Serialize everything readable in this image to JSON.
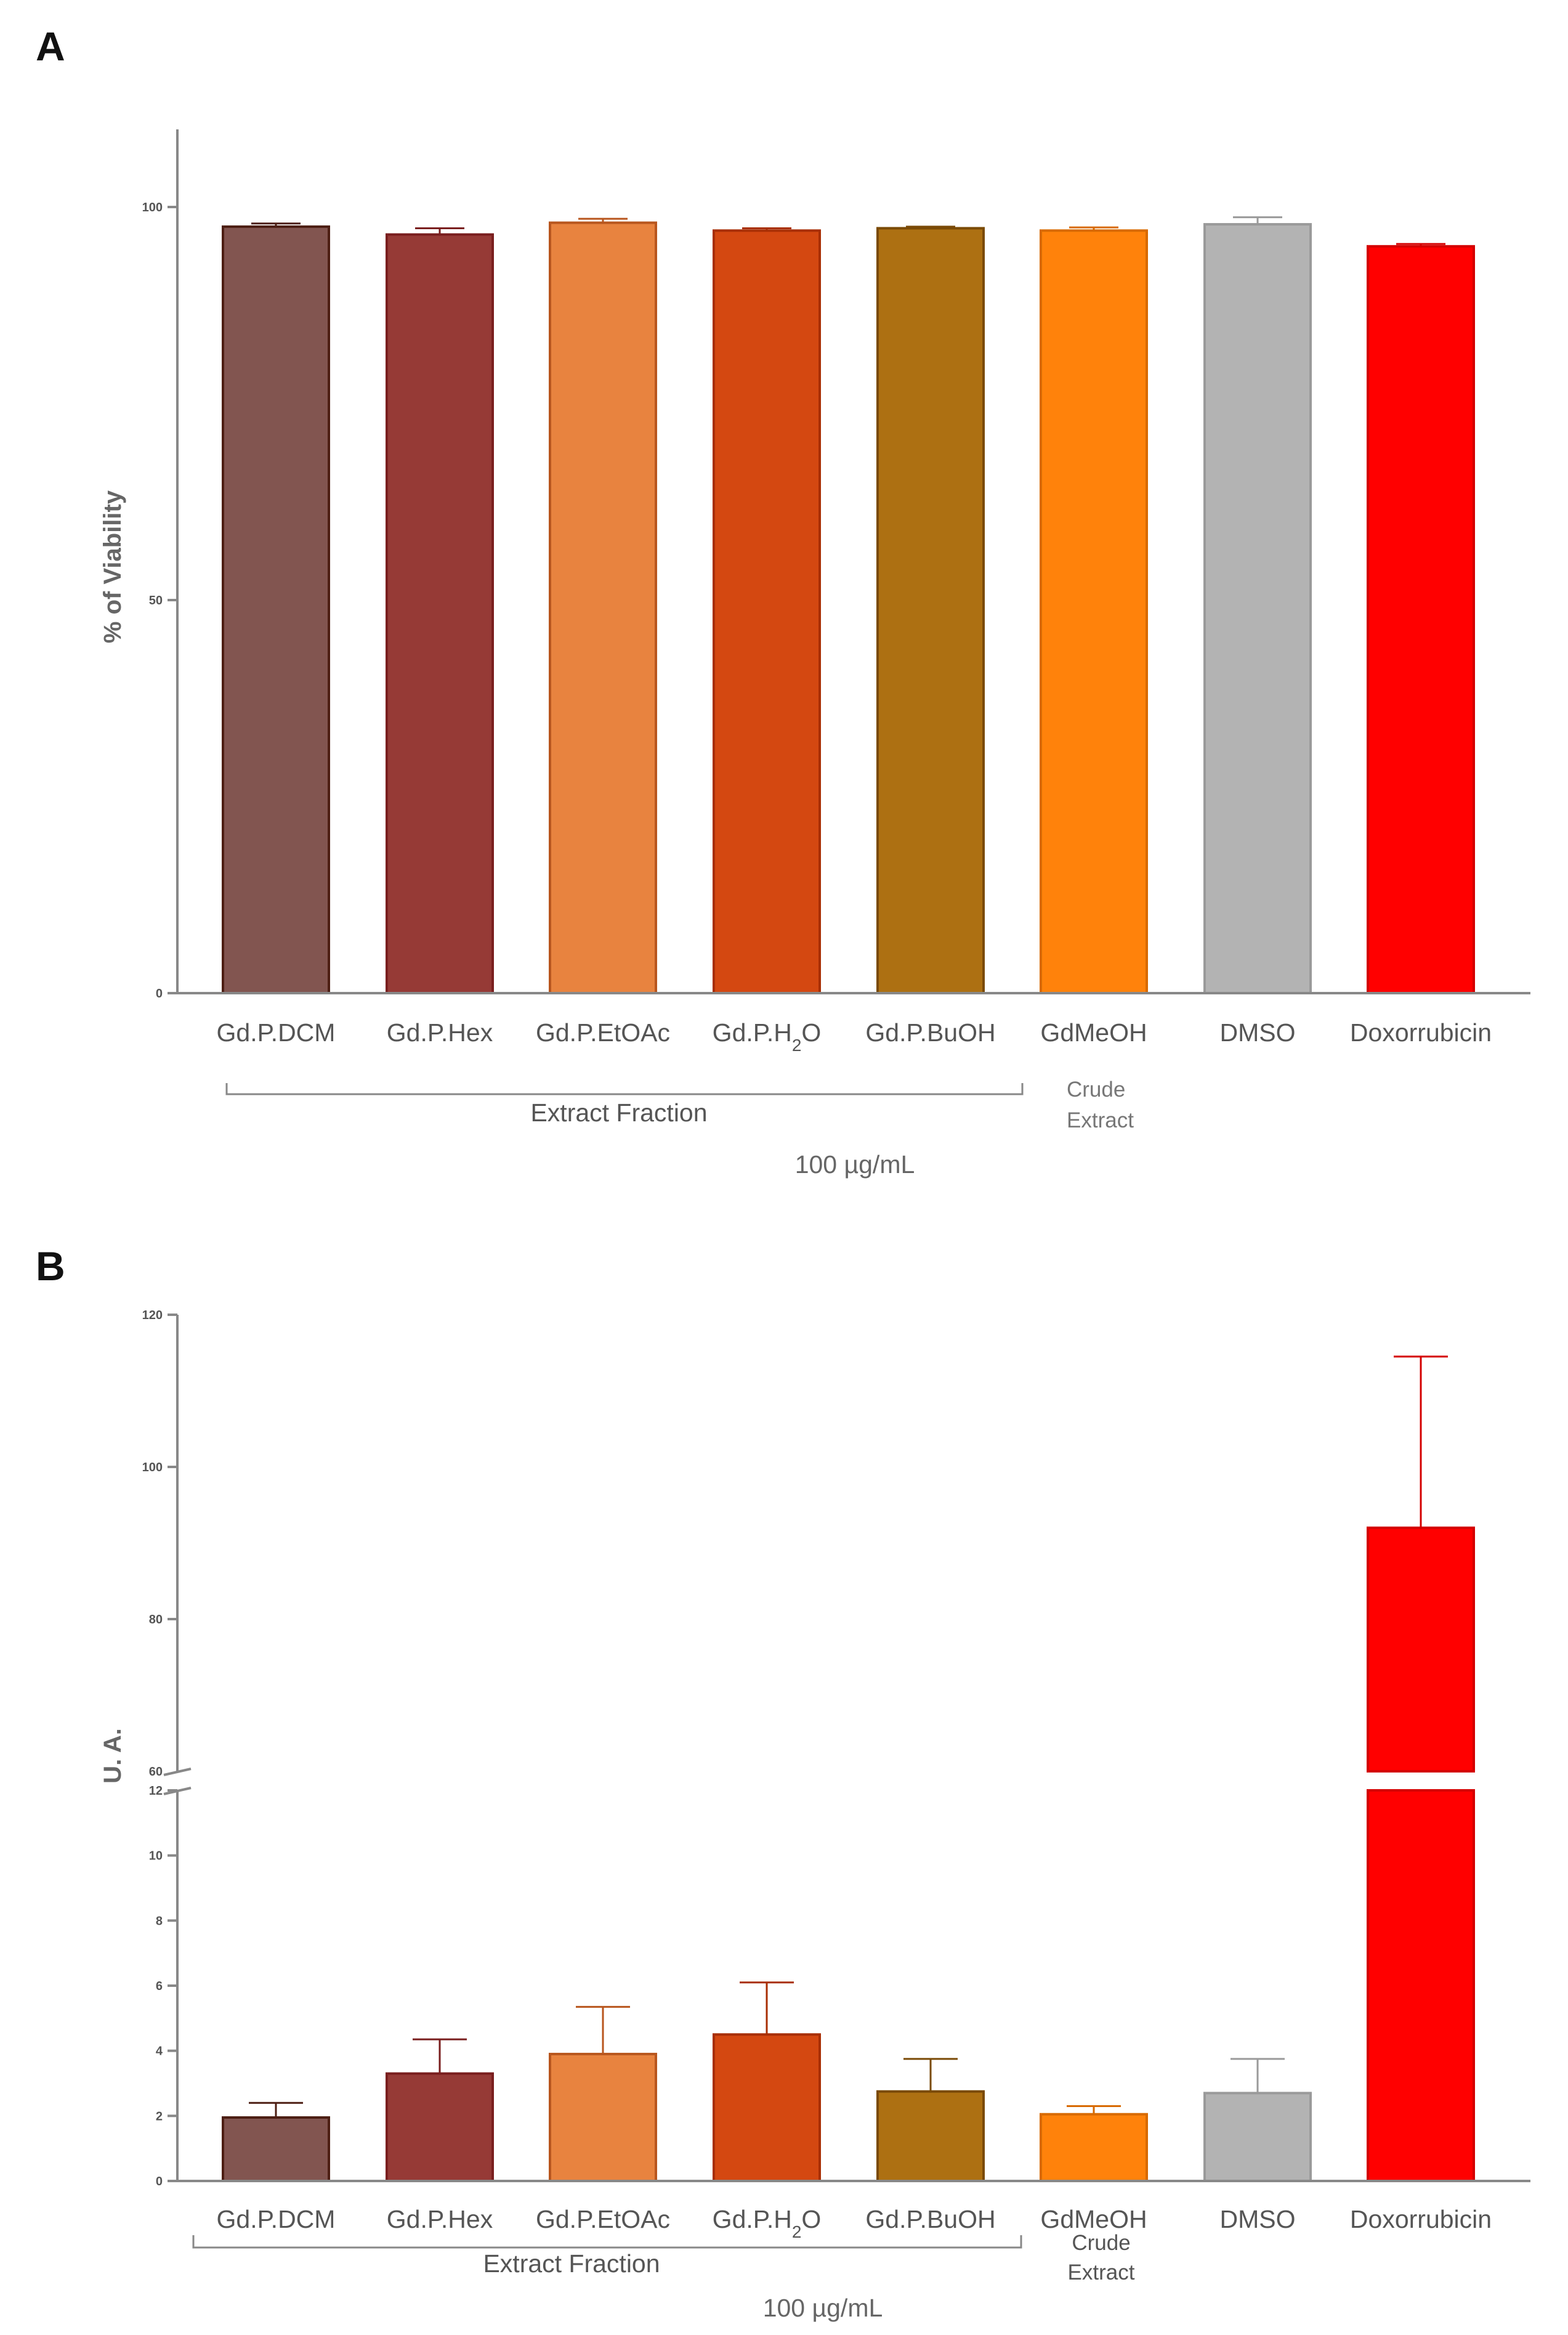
{
  "chart_data": [
    {
      "panel": "A",
      "type": "bar",
      "ylabel": "% of Viability",
      "ylim": [
        0,
        110
      ],
      "yticks": [
        0,
        50,
        100
      ],
      "categories": [
        "Gd.P.DCM",
        "Gd.P.Hex",
        "Gd.P.EtOAc",
        "Gd.P.H2O",
        "Gd.P.BuOH",
        "GdMeOH",
        "DMSO",
        "Doxorrubicin"
      ],
      "values": [
        97.5,
        96.5,
        98.0,
        97.0,
        97.3,
        97.0,
        97.8,
        95.0
      ],
      "errors": [
        0.4,
        0.8,
        0.5,
        0.3,
        0.2,
        0.4,
        0.9,
        0.3
      ],
      "colors": [
        "#825550",
        "#963a36",
        "#e8833f",
        "#d44811",
        "#ad7012",
        "#ff820b",
        "#b3b3b3",
        "#ff0000"
      ],
      "edge_colors": [
        "#4d1f14",
        "#7a1f1f",
        "#b8561e",
        "#a82f05",
        "#7a4a06",
        "#d86a00",
        "#9a9a9a",
        "#d40000"
      ],
      "group_label": "Extract  Fraction",
      "crude_line1": "Crude",
      "crude_line2": "Extract",
      "concentration": "100 µg/mL"
    },
    {
      "panel": "B",
      "type": "bar",
      "ylabel": "U. A.",
      "axis_break": true,
      "ylim_lower": [
        0,
        12
      ],
      "ylim_upper": [
        60,
        120
      ],
      "yticks_lower": [
        0,
        2,
        4,
        6,
        8,
        10,
        12
      ],
      "yticks_upper": [
        60,
        80,
        100,
        120
      ],
      "categories": [
        "Gd.P.DCM",
        "Gd.P.Hex",
        "Gd.P.EtOAc",
        "Gd.P.H2O",
        "Gd.P.BuOH",
        "GdMeOH",
        "DMSO",
        "Doxorrubicin"
      ],
      "values": [
        1.95,
        3.3,
        3.9,
        4.5,
        2.75,
        2.05,
        2.7,
        92.0
      ],
      "errors": [
        0.45,
        1.05,
        1.45,
        1.6,
        1.0,
        0.25,
        1.05,
        22.5
      ],
      "colors": [
        "#825550",
        "#963a36",
        "#e8833f",
        "#d44811",
        "#ad7012",
        "#ff820b",
        "#b3b3b3",
        "#ff0000"
      ],
      "edge_colors": [
        "#4d1f14",
        "#7a1f1f",
        "#b8561e",
        "#a82f05",
        "#7a4a06",
        "#d86a00",
        "#9a9a9a",
        "#d40000"
      ],
      "group_label": "Extract  Fraction",
      "crude_line1": "Crude",
      "crude_line2": "Extract",
      "concentration": "100 µg/mL"
    }
  ],
  "axis_color": "#888888"
}
